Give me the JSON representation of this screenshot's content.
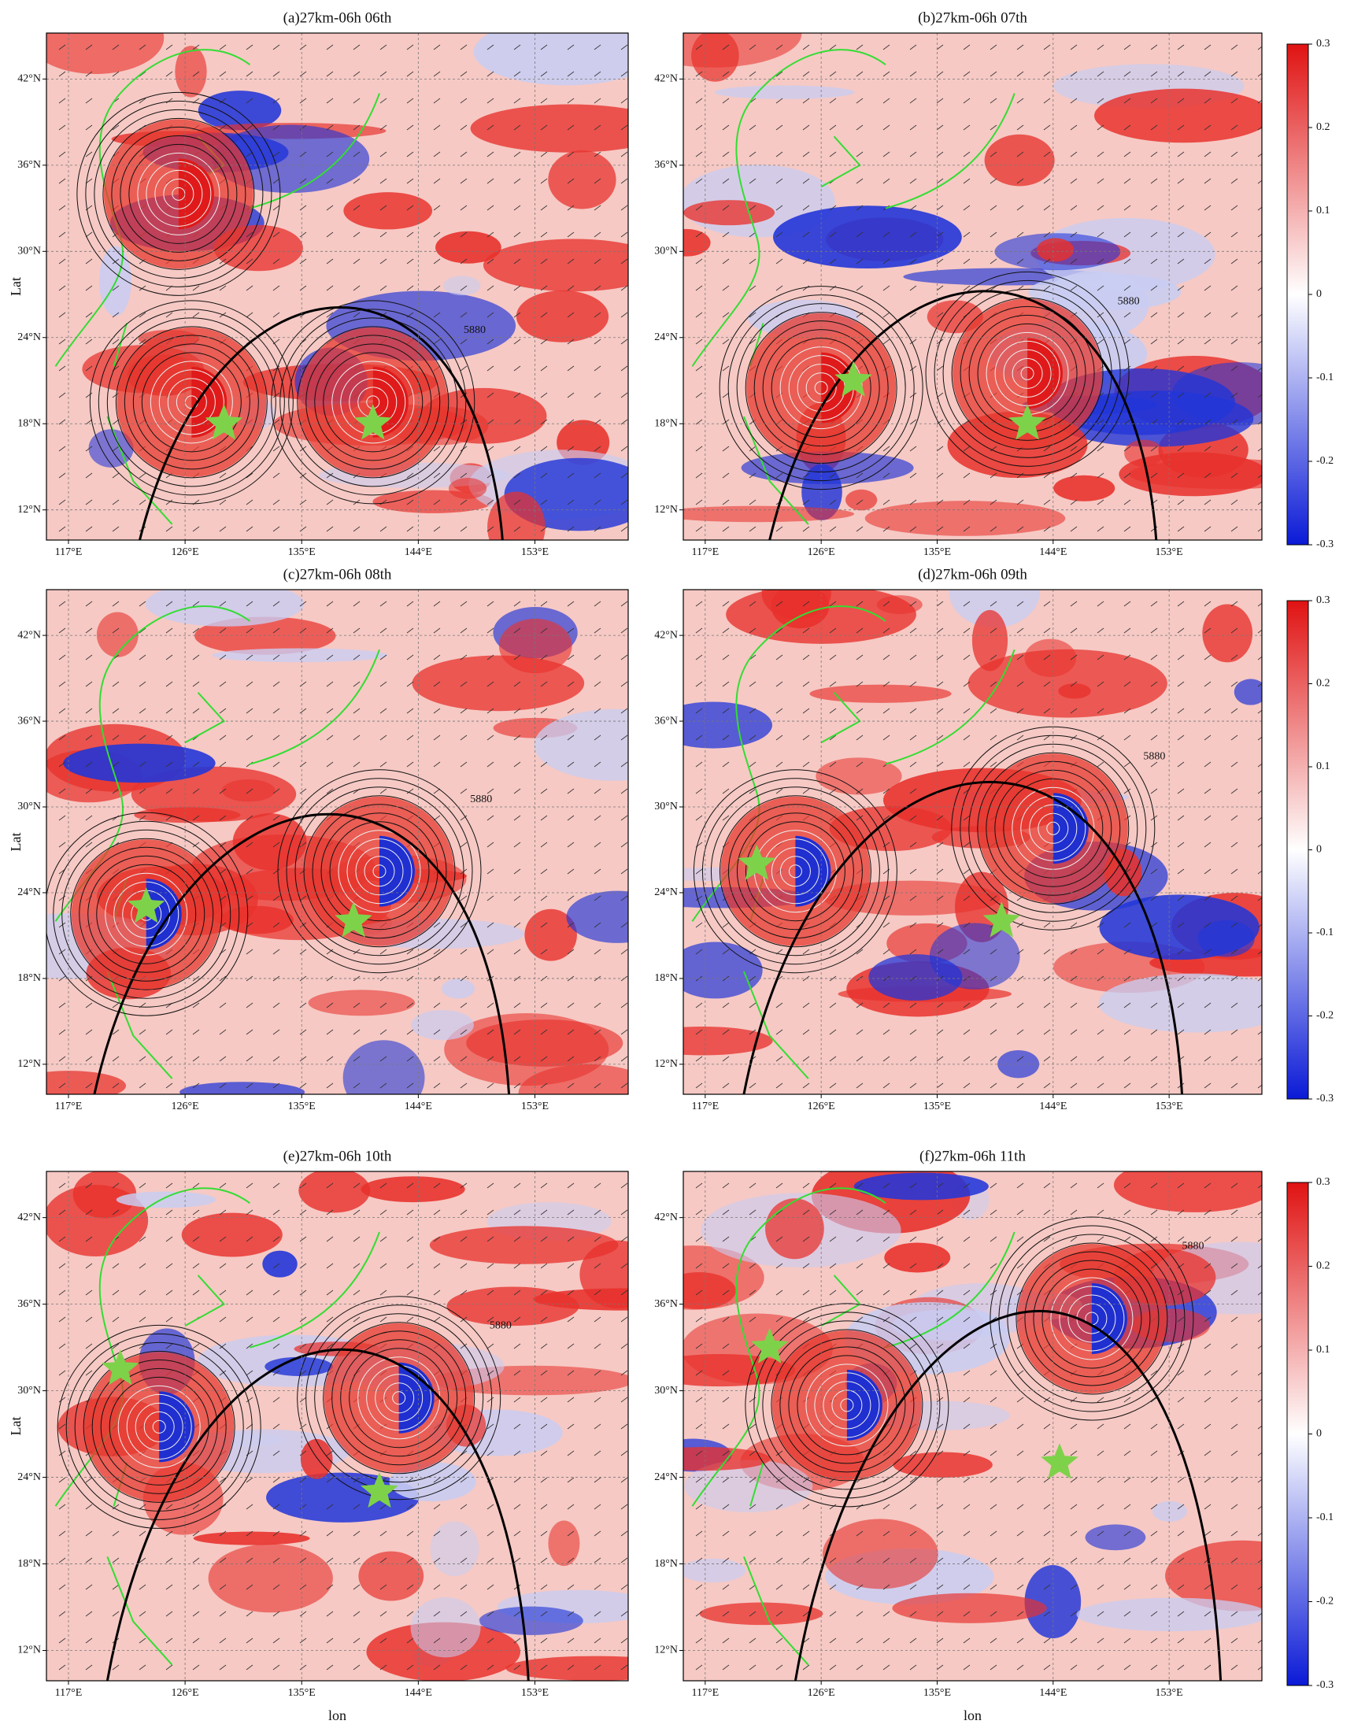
{
  "chart_data": [
    {
      "type": "map",
      "title": "(a)27km-06h 06th",
      "ylabel": "Lat",
      "xlim": [
        115.3,
        160.2
      ],
      "ylim": [
        9.9,
        45.2
      ],
      "xticks": [
        {
          "value": 117,
          "label": "117°E"
        },
        {
          "value": 126,
          "label": "126°E"
        },
        {
          "value": 135,
          "label": "135°E"
        },
        {
          "value": 144,
          "label": "144°E"
        },
        {
          "value": 153,
          "label": "153°E"
        }
      ],
      "yticks": [
        {
          "value": 12,
          "label": "12°N"
        },
        {
          "value": 18,
          "label": "18°N"
        },
        {
          "value": 24,
          "label": "24°N"
        },
        {
          "value": 30,
          "label": "30°N"
        },
        {
          "value": 36,
          "label": "36°N"
        },
        {
          "value": 42,
          "label": "42°N"
        }
      ],
      "grid": true,
      "contour_label": "5880",
      "stars": {
        "lon": [
          129,
          140.5
        ],
        "lat": [
          18,
          18
        ],
        "color": "#7ed24a"
      },
      "vortices": {
        "lon": [
          126.5,
          140.5,
          125.5
        ],
        "lat": [
          19.5,
          19.5,
          34
        ]
      }
    },
    {
      "type": "map",
      "title": "(b)27km-06h 07th",
      "xlim": [
        115.3,
        160.2
      ],
      "ylim": [
        9.9,
        45.2
      ],
      "xticks": [
        {
          "value": 117,
          "label": "117°E"
        },
        {
          "value": 126,
          "label": "126°E"
        },
        {
          "value": 135,
          "label": "135°E"
        },
        {
          "value": 144,
          "label": "144°E"
        },
        {
          "value": 153,
          "label": "153°E"
        }
      ],
      "yticks": [
        {
          "value": 12,
          "label": "12°N"
        },
        {
          "value": 18,
          "label": "18°N"
        },
        {
          "value": 24,
          "label": "24°N"
        },
        {
          "value": 30,
          "label": "30°N"
        },
        {
          "value": 36,
          "label": "36°N"
        },
        {
          "value": 42,
          "label": "42°N"
        }
      ],
      "grid": true,
      "contour_label": "5880",
      "stars": {
        "lon": [
          128.5,
          142
        ],
        "lat": [
          21,
          18
        ],
        "color": "#7ed24a"
      },
      "vortices": {
        "lon": [
          126,
          142
        ],
        "lat": [
          20.5,
          21.5
        ]
      }
    },
    {
      "type": "map",
      "title": "(c)27km-06h 08th",
      "ylabel": "Lat",
      "xlim": [
        115.3,
        160.2
      ],
      "ylim": [
        9.9,
        45.2
      ],
      "xticks": [
        {
          "value": 117,
          "label": "117°E"
        },
        {
          "value": 126,
          "label": "126°E"
        },
        {
          "value": 135,
          "label": "135°E"
        },
        {
          "value": 144,
          "label": "144°E"
        },
        {
          "value": 153,
          "label": "153°E"
        }
      ],
      "yticks": [
        {
          "value": 12,
          "label": "12°N"
        },
        {
          "value": 18,
          "label": "18°N"
        },
        {
          "value": 24,
          "label": "24°N"
        },
        {
          "value": 30,
          "label": "30°N"
        },
        {
          "value": 36,
          "label": "36°N"
        },
        {
          "value": 42,
          "label": "42°N"
        }
      ],
      "grid": true,
      "contour_label": "5880",
      "stars": {
        "lon": [
          123,
          139
        ],
        "lat": [
          23,
          22
        ],
        "color": "#7ed24a"
      },
      "vortices": {
        "lon": [
          123,
          141
        ],
        "lat": [
          22.5,
          25.5
        ]
      }
    },
    {
      "type": "map",
      "title": "(d)27km-06h 09th",
      "xlim": [
        115.3,
        160.2
      ],
      "ylim": [
        9.9,
        45.2
      ],
      "xticks": [
        {
          "value": 117,
          "label": "117°E"
        },
        {
          "value": 126,
          "label": "126°E"
        },
        {
          "value": 135,
          "label": "135°E"
        },
        {
          "value": 144,
          "label": "144°E"
        },
        {
          "value": 153,
          "label": "153°E"
        }
      ],
      "yticks": [
        {
          "value": 12,
          "label": "12°N"
        },
        {
          "value": 18,
          "label": "18°N"
        },
        {
          "value": 24,
          "label": "24°N"
        },
        {
          "value": 30,
          "label": "30°N"
        },
        {
          "value": 36,
          "label": "36°N"
        },
        {
          "value": 42,
          "label": "42°N"
        }
      ],
      "grid": true,
      "contour_label": "5880",
      "stars": {
        "lon": [
          121,
          140
        ],
        "lat": [
          26,
          22
        ],
        "color": "#7ed24a"
      },
      "vortices": {
        "lon": [
          124,
          144
        ],
        "lat": [
          25.5,
          28.5
        ]
      }
    },
    {
      "type": "map",
      "title": "(e)27km-06h 10th",
      "ylabel": "Lat",
      "xlabel": "lon",
      "xlim": [
        115.3,
        160.2
      ],
      "ylim": [
        9.9,
        45.2
      ],
      "xticks": [
        {
          "value": 117,
          "label": "117°E"
        },
        {
          "value": 126,
          "label": "126°E"
        },
        {
          "value": 135,
          "label": "135°E"
        },
        {
          "value": 144,
          "label": "144°E"
        },
        {
          "value": 153,
          "label": "153°E"
        }
      ],
      "yticks": [
        {
          "value": 12,
          "label": "12°N"
        },
        {
          "value": 18,
          "label": "18°N"
        },
        {
          "value": 24,
          "label": "24°N"
        },
        {
          "value": 30,
          "label": "30°N"
        },
        {
          "value": 36,
          "label": "36°N"
        },
        {
          "value": 42,
          "label": "42°N"
        }
      ],
      "grid": true,
      "contour_label": "5880",
      "stars": {
        "lon": [
          121,
          141
        ],
        "lat": [
          31.5,
          23
        ],
        "color": "#7ed24a"
      },
      "vortices": {
        "lon": [
          124,
          142.5
        ],
        "lat": [
          27.5,
          29.5
        ]
      }
    },
    {
      "type": "map",
      "title": "(f)27km-06h 11th",
      "xlabel": "lon",
      "xlim": [
        115.3,
        160.2
      ],
      "ylim": [
        9.9,
        45.2
      ],
      "xticks": [
        {
          "value": 117,
          "label": "117°E"
        },
        {
          "value": 126,
          "label": "126°E"
        },
        {
          "value": 135,
          "label": "135°E"
        },
        {
          "value": 144,
          "label": "144°E"
        },
        {
          "value": 153,
          "label": "153°E"
        }
      ],
      "yticks": [
        {
          "value": 12,
          "label": "12°N"
        },
        {
          "value": 18,
          "label": "18°N"
        },
        {
          "value": 24,
          "label": "24°N"
        },
        {
          "value": 30,
          "label": "30°N"
        },
        {
          "value": 36,
          "label": "36°N"
        },
        {
          "value": 42,
          "label": "42°N"
        }
      ],
      "grid": true,
      "contour_label": "5880",
      "stars": {
        "lon": [
          122,
          144.5
        ],
        "lat": [
          33,
          25
        ],
        "color": "#7ed24a"
      },
      "vortices": {
        "lon": [
          128,
          147
        ],
        "lat": [
          29,
          35
        ]
      }
    }
  ],
  "colorbar": {
    "lim": [
      -0.3,
      0.3
    ],
    "ticks": [
      -0.3,
      -0.2,
      -0.1,
      0,
      0.1,
      0.2,
      0.3
    ],
    "colors": [
      "#0a1ad6",
      "#ffffff",
      "#e01212"
    ]
  }
}
